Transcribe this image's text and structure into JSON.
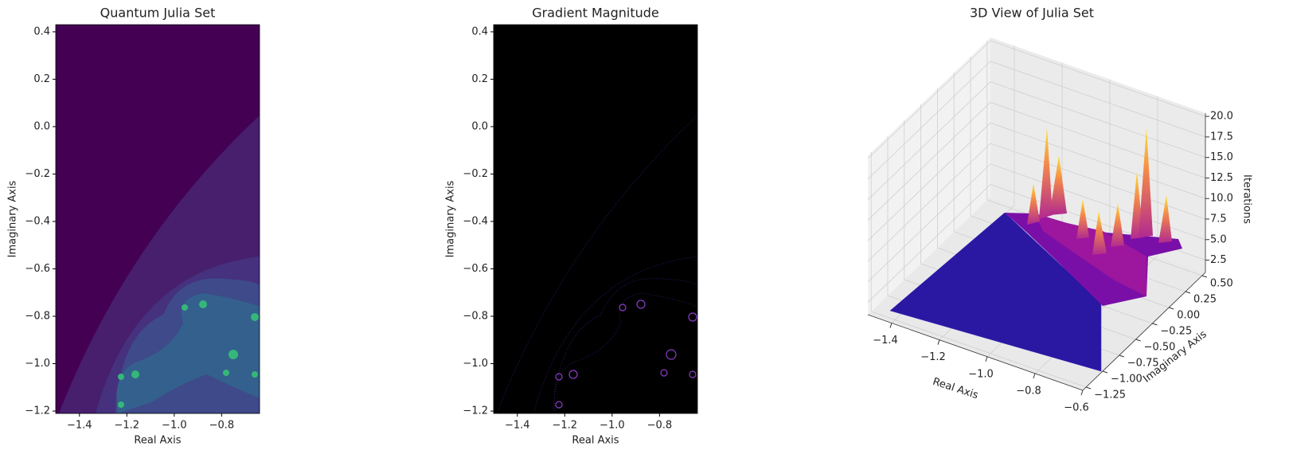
{
  "chart_data": [
    {
      "type": "heatmap",
      "title": "Quantum Julia Set",
      "x_label": "Real Axis",
      "y_label": "Imaginary Axis",
      "xlim": [
        -1.5,
        -0.64
      ],
      "ylim": [
        -1.21,
        0.43
      ],
      "xticks": [
        {
          "value": -1.4,
          "label": "−1.4"
        },
        {
          "value": -1.2,
          "label": "−1.2"
        },
        {
          "value": -1.0,
          "label": "−1.0"
        },
        {
          "value": -0.8,
          "label": "−0.8"
        }
      ],
      "yticks": [
        {
          "value": -1.2,
          "label": "−1.2"
        },
        {
          "value": -1.0,
          "label": "−1.0"
        },
        {
          "value": -0.8,
          "label": "−0.8"
        },
        {
          "value": -0.6,
          "label": "−0.6"
        },
        {
          "value": -0.4,
          "label": "−0.4"
        },
        {
          "value": -0.2,
          "label": "−0.2"
        },
        {
          "value": 0,
          "label": "0.0"
        },
        0.2,
        0.4
      ]
    },
    {
      "type": "heatmap",
      "title": "Gradient Magnitude",
      "x_label": "Real Axis",
      "y_label": "Imaginary Axis",
      "xlim": [
        -1.5,
        -0.64
      ],
      "ylim": [
        -1.21,
        0.43
      ],
      "xticks": [
        {
          "value": -1.4,
          "label": "−1.4"
        },
        {
          "value": -1.2,
          "label": "−1.2"
        },
        {
          "value": -1.0,
          "label": "−1.0"
        },
        {
          "value": -0.8,
          "label": "−0.8"
        }
      ],
      "yticks": [
        {
          "value": -1.2,
          "label": "−1.2"
        },
        {
          "value": -1.0,
          "label": "−1.0"
        },
        {
          "value": -0.8,
          "label": "−0.8"
        },
        {
          "value": -0.6,
          "label": "−0.6"
        },
        {
          "value": -0.4,
          "label": "−0.4"
        },
        {
          "value": -0.2,
          "label": "−0.2"
        },
        {
          "value": 0,
          "label": "0.0"
        },
        0.2,
        0.4
      ]
    },
    {
      "type": "surface3d",
      "title": "3D View of Julia Set",
      "x_label": "Real Axis",
      "y_label": "Imaginary Axis",
      "z_label": "Iterations",
      "xlim": [
        -1.5,
        -0.6
      ],
      "ylim": [
        -1.3,
        0.55
      ],
      "zlim": [
        1,
        20.4
      ],
      "xticks": [
        {
          "value": -1.4,
          "label": "−1.4"
        },
        {
          "value": -1.2,
          "label": "−1.2"
        },
        {
          "value": -1.0,
          "label": "−1.0"
        },
        {
          "value": -0.8,
          "label": "−0.8"
        },
        {
          "value": -0.6,
          "label": "−0.6"
        }
      ],
      "yticks": [
        {
          "value": -1.25,
          "label": "−1.25"
        },
        {
          "value": -1.0,
          "label": "−1.00"
        },
        {
          "value": -0.75,
          "label": "−0.75"
        },
        {
          "value": -0.5,
          "label": "−0.50"
        },
        {
          "value": -0.25,
          "label": "−0.25"
        },
        {
          "value": 0,
          "label": "0.00"
        },
        0.25,
        {
          "value": 0.5,
          "label": "0.50"
        }
      ],
      "zticks": [
        2.5,
        {
          "value": 5,
          "label": "5.0"
        },
        7.5,
        {
          "value": 10,
          "label": "10.0"
        },
        12.5,
        {
          "value": 15,
          "label": "15.0"
        },
        17.5,
        {
          "value": 20,
          "label": "20.0"
        }
      ]
    }
  ]
}
